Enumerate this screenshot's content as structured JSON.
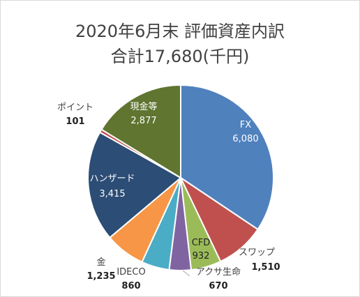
{
  "chart_data": {
    "type": "pie",
    "title": "2020年6月末 評価資産内訳",
    "subtitle": "合計17,680(千円)",
    "slices": [
      {
        "name": "FX",
        "value": 6080,
        "value_label": "6,080",
        "color": "#4f81bd"
      },
      {
        "name": "スワップ",
        "value": 1510,
        "value_label": "1,510",
        "color": "#c0504d"
      },
      {
        "name": "CFD",
        "value": 932,
        "value_label": "932",
        "color": "#9bbb59"
      },
      {
        "name": "アクサ生命",
        "value": 670,
        "value_label": "670",
        "color": "#8064a2"
      },
      {
        "name": "IDECO",
        "value": 860,
        "value_label": "860",
        "color": "#4bacc6"
      },
      {
        "name": "金",
        "value": 1235,
        "value_label": "1,235",
        "color": "#f79646"
      },
      {
        "name": "ハンザード",
        "value": 3415,
        "value_label": "3,415",
        "color": "#2c4d75"
      },
      {
        "name": "ポイント",
        "value": 101,
        "value_label": "101",
        "color": "#c0504d"
      },
      {
        "name": "現金等",
        "value": 2877,
        "value_label": "2,877",
        "color": "#5f7530"
      }
    ],
    "legend": "none"
  }
}
